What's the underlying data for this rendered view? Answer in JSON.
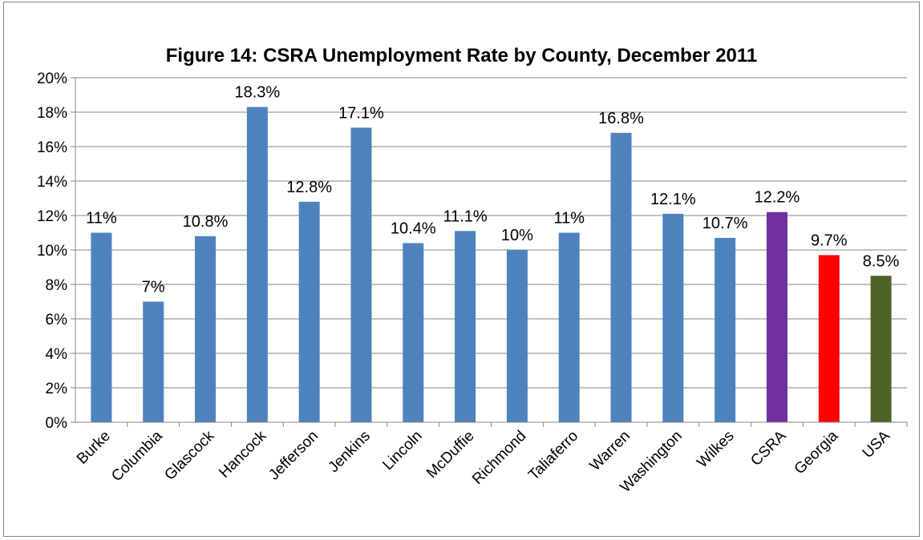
{
  "chart_data": {
    "type": "bar",
    "title": "Figure 14: CSRA Unemployment Rate by County, December 2011",
    "xlabel": "",
    "ylabel": "",
    "ylim": [
      0,
      20
    ],
    "yticks": [
      "0%",
      "2%",
      "4%",
      "6%",
      "8%",
      "10%",
      "12%",
      "14%",
      "16%",
      "18%",
      "20%"
    ],
    "grid": true,
    "legend": "none",
    "categories": [
      "Burke",
      "Columbia",
      "Glascock",
      "Hancock",
      "Jefferson",
      "Jenkins",
      "Lincoln",
      "McDuffie",
      "Richmond",
      "Taliaferro",
      "Warren",
      "Washington",
      "Wilkes",
      "CSRA",
      "Georgia",
      "USA"
    ],
    "values": [
      11,
      7,
      10.8,
      18.3,
      12.8,
      17.1,
      10.4,
      11.1,
      10,
      11,
      16.8,
      12.1,
      10.7,
      12.2,
      9.7,
      8.5
    ],
    "data_labels": [
      "11%",
      "7%",
      "10.8%",
      "18.3%",
      "12.8%",
      "17.1%",
      "10.4%",
      "11.1%",
      "10%",
      "11%",
      "16.8%",
      "12.1%",
      "10.7%",
      "12.2%",
      "9.7%",
      "8.5%"
    ],
    "colors": [
      "#4f81bd",
      "#4f81bd",
      "#4f81bd",
      "#4f81bd",
      "#4f81bd",
      "#4f81bd",
      "#4f81bd",
      "#4f81bd",
      "#4f81bd",
      "#4f81bd",
      "#4f81bd",
      "#4f81bd",
      "#4f81bd",
      "#7030a0",
      "#ff0000",
      "#4f6228"
    ]
  }
}
